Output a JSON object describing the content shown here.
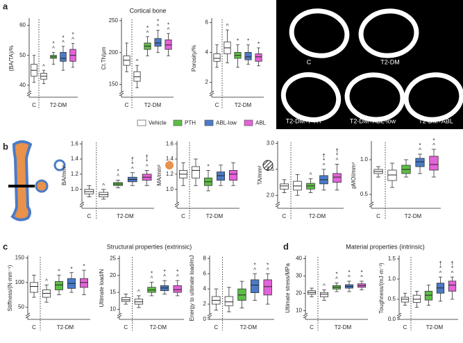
{
  "panel_letters": [
    "a",
    "b",
    "c",
    "d"
  ],
  "headings": [
    "Cortical bone",
    "Structural properties (extrinsic)",
    "Material properties (intrinsic)"
  ],
  "legend": [
    {
      "name": "Vehicle",
      "color": "#ffffff"
    },
    {
      "name": "PTH",
      "color": "#5cbf45"
    },
    {
      "name": "ABL-low",
      "color": "#4a7bc8"
    },
    {
      "name": "ABL",
      "color": "#e363d8"
    }
  ],
  "images": [
    "C",
    "T2-DM",
    "T2-DM+PTH",
    "T2-DM+ABL-low",
    "T2-DM+ABL"
  ],
  "chart_data": [
    {
      "type": "box",
      "ylabel": "(BA/TA)/%",
      "ylim": [
        36,
        62
      ],
      "yticks": [
        40,
        50,
        60
      ],
      "groups": [
        "C",
        "T2-DM"
      ],
      "values": [
        [
          41,
          43,
          45,
          47,
          50
        ],
        [
          40.5,
          42,
          43,
          44,
          45
        ],
        [
          47,
          49,
          49.5,
          50,
          51
        ],
        [
          45,
          48,
          49,
          51,
          53
        ],
        [
          46,
          48,
          50,
          52,
          54
        ]
      ],
      "annotations": [
        [],
        [
          "^"
        ],
        [
          "*",
          "^"
        ],
        [
          "*",
          "^"
        ],
        [
          "*",
          "^"
        ]
      ]
    },
    {
      "type": "box",
      "ylabel": "Ct.Th/µm",
      "ylim": [
        130,
        252
      ],
      "yticks": [
        150,
        200,
        250
      ],
      "groups": [
        "C",
        "T2-DM"
      ],
      "values": [
        [
          170,
          180,
          188,
          195,
          215
        ],
        [
          145,
          155,
          162,
          170,
          180
        ],
        [
          195,
          205,
          210,
          215,
          225
        ],
        [
          200,
          210,
          215,
          222,
          235
        ],
        [
          195,
          205,
          212,
          220,
          230
        ]
      ],
      "annotations": [
        [],
        [
          "^"
        ],
        [
          "*",
          "^"
        ],
        [
          "*",
          "^"
        ],
        [
          "*",
          "^"
        ]
      ]
    },
    {
      "type": "box",
      "ylabel": "Porosity/%",
      "ylim": [
        1,
        6.2
      ],
      "yticks": [
        2,
        4,
        6
      ],
      "groups": [
        "C",
        "T2-DM"
      ],
      "values": [
        [
          3,
          3.4,
          3.6,
          3.9,
          4.5
        ],
        [
          3.3,
          3.9,
          4.3,
          4.7,
          5.5
        ],
        [
          3,
          3.6,
          3.8,
          4,
          4.5
        ],
        [
          3.2,
          3.5,
          3.7,
          4,
          4.5
        ],
        [
          3.1,
          3.4,
          3.7,
          3.9,
          4.3
        ]
      ],
      "annotations": [
        [],
        [
          "^"
        ],
        [
          "*"
        ],
        [
          "*"
        ],
        [
          "*"
        ]
      ]
    },
    {
      "type": "box",
      "ylabel": "BA/mm²",
      "ylim": [
        0.75,
        1.62
      ],
      "yticks": [
        {
          "value": 1,
          "label": "1.0"
        },
        1.2,
        1.4,
        1.6
      ],
      "groups": [
        "C",
        "T2-DM"
      ],
      "values": [
        [
          0.9,
          0.94,
          0.97,
          1,
          1.05
        ],
        [
          0.87,
          0.9,
          0.93,
          0.96,
          1
        ],
        [
          1.02,
          1.05,
          1.07,
          1.09,
          1.12
        ],
        [
          1.05,
          1.1,
          1.13,
          1.16,
          1.22
        ],
        [
          1.05,
          1.12,
          1.16,
          1.2,
          1.25
        ]
      ],
      "annotations": [
        [],
        [
          "^"
        ],
        [
          "*",
          "^"
        ],
        [
          "†",
          "*",
          "^"
        ],
        [
          "†",
          "*",
          "^"
        ]
      ]
    },
    {
      "type": "box",
      "ylabel": "MA/mm²",
      "ylim": [
        0.75,
        1.62
      ],
      "yticks": [
        {
          "value": 1,
          "label": "1.0"
        },
        1.2,
        1.4,
        1.6
      ],
      "groups": [
        "C",
        "T2-DM"
      ],
      "values": [
        [
          1.05,
          1.15,
          1.2,
          1.25,
          1.35
        ],
        [
          1.05,
          1.15,
          1.25,
          1.3,
          1.4
        ],
        [
          0.98,
          1.05,
          1.1,
          1.15,
          1.25
        ],
        [
          1.05,
          1.12,
          1.18,
          1.23,
          1.32
        ],
        [
          1.05,
          1.12,
          1.2,
          1.25,
          1.35
        ]
      ],
      "annotations": [
        [],
        [],
        [
          "*"
        ],
        [],
        []
      ]
    },
    {
      "type": "box",
      "ylabel": "TA/mm²",
      "ylim": [
        1.75,
        3.02
      ],
      "yticks": [
        {
          "value": 2,
          "label": "2.0"
        },
        2.5,
        {
          "value": 3,
          "label": "3.0"
        }
      ],
      "groups": [
        "C",
        "T2-DM"
      ],
      "values": [
        [
          2.05,
          2.12,
          2.18,
          2.22,
          2.3
        ],
        [
          2,
          2.1,
          2.18,
          2.27,
          2.4
        ],
        [
          2.05,
          2.12,
          2.18,
          2.23,
          2.32
        ],
        [
          2.1,
          2.22,
          2.3,
          2.38,
          2.5
        ],
        [
          2.1,
          2.25,
          2.35,
          2.42,
          2.6
        ]
      ],
      "annotations": [
        [],
        [],
        [
          "^"
        ],
        [
          "†",
          "*",
          "^"
        ],
        [
          "†",
          "*",
          "^"
        ]
      ]
    },
    {
      "type": "box",
      "ylabel": "pMOI/mm⁴",
      "ylim": [
        0.3,
        1.25
      ],
      "yticks": [
        0.5,
        {
          "value": 1,
          "label": "1.0"
        }
      ],
      "groups": [
        "C",
        "T2-DM"
      ],
      "values": [
        [
          0.75,
          0.8,
          0.83,
          0.86,
          0.9
        ],
        [
          0.6,
          0.7,
          0.78,
          0.85,
          0.95
        ],
        [
          0.75,
          0.8,
          0.86,
          0.92,
          1
        ],
        [
          0.8,
          0.9,
          0.97,
          1.02,
          1.08
        ],
        [
          0.75,
          0.85,
          0.93,
          1.05,
          1.15
        ]
      ],
      "annotations": [
        [],
        [],
        [],
        [
          "*",
          "^"
        ],
        [
          "*",
          "^"
        ]
      ]
    },
    {
      "type": "box",
      "ylabel": "Stiffness/(N·mm⁻¹)",
      "ylim": [
        25,
        152
      ],
      "yticks": [
        50,
        100,
        150
      ],
      "groups": [
        "C",
        "T2-DM"
      ],
      "values": [
        [
          70,
          80,
          92,
          100,
          115
        ],
        [
          60,
          70,
          78,
          85,
          95
        ],
        [
          75,
          85,
          95,
          102,
          115
        ],
        [
          80,
          88,
          98,
          108,
          120
        ],
        [
          75,
          90,
          100,
          108,
          125
        ]
      ],
      "annotations": [
        [],
        [
          "^"
        ],
        [
          "*"
        ],
        [
          "*"
        ],
        [
          "*"
        ]
      ]
    },
    {
      "type": "box",
      "ylabel": "Ultimate load/N",
      "ylim": [
        7,
        25.5
      ],
      "yticks": [
        10,
        15,
        20,
        25
      ],
      "groups": [
        "C",
        "T2-DM"
      ],
      "values": [
        [
          11.5,
          12.3,
          12.8,
          13.5,
          14.5
        ],
        [
          10.5,
          11.5,
          12.2,
          13,
          14
        ],
        [
          14,
          15,
          15.7,
          16.5,
          18
        ],
        [
          14.5,
          15.5,
          16.3,
          17,
          18.5
        ],
        [
          14,
          15,
          15.8,
          17,
          18.5
        ]
      ],
      "annotations": [
        [],
        [
          "^"
        ],
        [
          "*",
          "^"
        ],
        [
          "*",
          "^"
        ],
        [
          "*",
          "^"
        ]
      ]
    },
    {
      "type": "box",
      "ylabel": "Energy to ultimate load/mJ",
      "ylim": [
        0,
        8.2
      ],
      "yticks": [
        0,
        2,
        4,
        6,
        8
      ],
      "groups": [
        "C",
        "T2-DM"
      ],
      "values": [
        [
          1.2,
          2,
          2.5,
          3,
          4
        ],
        [
          1,
          1.8,
          2.3,
          3,
          4.2
        ],
        [
          1.5,
          2.5,
          3.2,
          4,
          5
        ],
        [
          2.5,
          3.5,
          4.5,
          5.2,
          6
        ],
        [
          2,
          3.2,
          4.3,
          5.2,
          6
        ]
      ],
      "annotations": [
        [],
        [],
        [],
        [
          "*",
          "^"
        ],
        [
          "*",
          "^"
        ]
      ]
    },
    {
      "type": "box",
      "ylabel": "Ultimate stress/MPa",
      "ylim": [
        5,
        41
      ],
      "yticks": [
        10,
        20,
        30,
        40
      ],
      "groups": [
        "C",
        "T2-DM"
      ],
      "values": [
        [
          18,
          19.5,
          20.5,
          21.5,
          23
        ],
        [
          16,
          18,
          19.5,
          20.5,
          22
        ],
        [
          21,
          22.5,
          23.5,
          24.5,
          26
        ],
        [
          21,
          23,
          24,
          25,
          27
        ],
        [
          22,
          23.5,
          24.5,
          25.5,
          27
        ]
      ],
      "annotations": [
        [],
        [
          "^"
        ],
        [
          "*",
          "^"
        ],
        [
          "*",
          "^"
        ],
        [
          "*",
          "^"
        ]
      ]
    },
    {
      "type": "box",
      "ylabel": "Toughness/(mJ·m⁻³)",
      "ylim": [
        0,
        1.55
      ],
      "yticks": [
        {
          "value": 0,
          "label": "0.0"
        },
        0.5,
        {
          "value": 1,
          "label": "1.0"
        },
        1.5
      ],
      "groups": [
        "C",
        "T2-DM"
      ],
      "values": [
        [
          0.35,
          0.43,
          0.5,
          0.55,
          0.65
        ],
        [
          0.3,
          0.42,
          0.5,
          0.6,
          0.7
        ],
        [
          0.35,
          0.48,
          0.6,
          0.7,
          0.85
        ],
        [
          0.45,
          0.65,
          0.78,
          0.9,
          1.05
        ],
        [
          0.5,
          0.7,
          0.85,
          0.95,
          1.05
        ]
      ],
      "annotations": [
        [],
        [],
        [],
        [
          "†",
          "*",
          "^"
        ],
        [
          "†",
          "*",
          "^"
        ]
      ]
    }
  ]
}
